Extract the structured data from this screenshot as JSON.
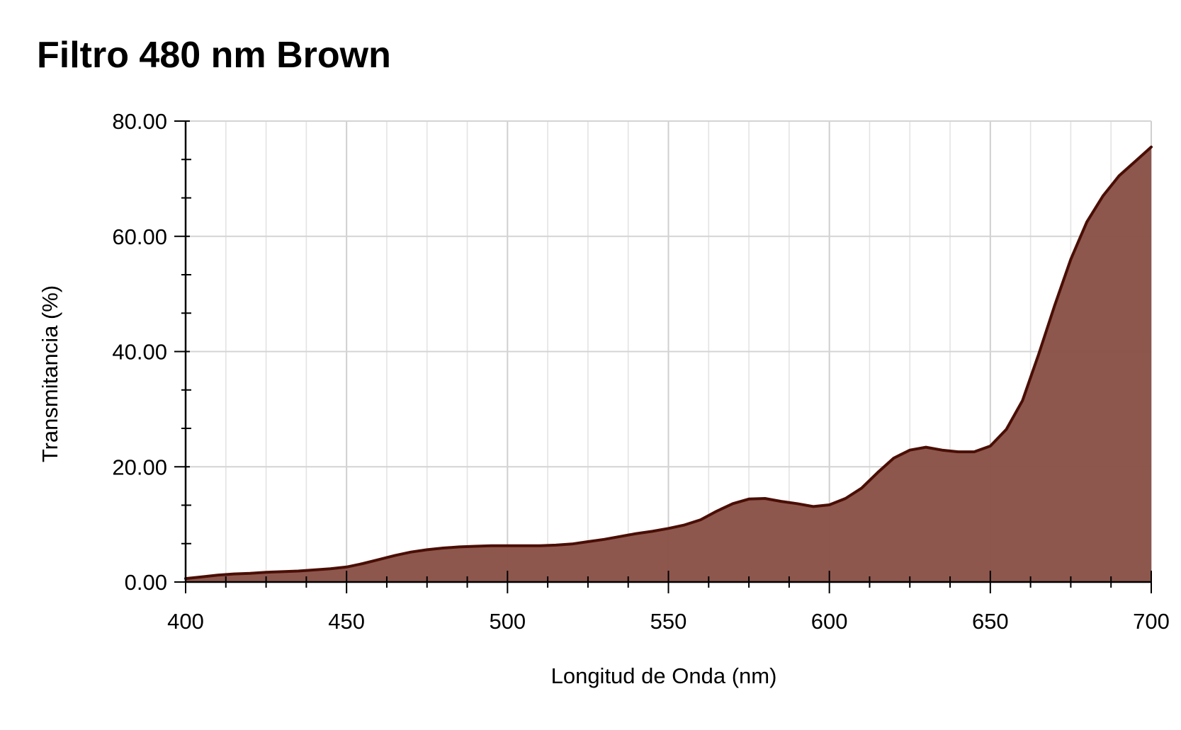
{
  "chart_data": {
    "type": "area",
    "title": "Filtro 480 nm Brown",
    "xlabel": "Longitud de Onda (nm)",
    "ylabel": "Transmitancia (%)",
    "xlim": [
      400,
      700
    ],
    "ylim": [
      0,
      80
    ],
    "x_ticks": [
      "400",
      "450",
      "500",
      "550",
      "600",
      "650",
      "700"
    ],
    "y_ticks": [
      "0.00",
      "20.00",
      "40.00",
      "60.00",
      "80.00"
    ],
    "grid": true,
    "series": [
      {
        "color": "#8B5449",
        "line_color": "#4A0E05",
        "x": [
          400,
          405,
          410,
          415,
          420,
          425,
          430,
          435,
          440,
          445,
          450,
          455,
          460,
          465,
          470,
          475,
          480,
          485,
          490,
          495,
          500,
          505,
          510,
          515,
          520,
          525,
          530,
          535,
          540,
          545,
          550,
          555,
          560,
          565,
          570,
          575,
          580,
          585,
          590,
          595,
          600,
          605,
          610,
          615,
          620,
          625,
          630,
          635,
          640,
          645,
          650,
          655,
          660,
          665,
          670,
          675,
          680,
          685,
          690,
          695,
          700
        ],
        "y": [
          0.6,
          0.9,
          1.2,
          1.4,
          1.5,
          1.7,
          1.8,
          1.9,
          2.1,
          2.3,
          2.6,
          3.2,
          3.9,
          4.6,
          5.2,
          5.6,
          5.9,
          6.1,
          6.2,
          6.3,
          6.3,
          6.3,
          6.3,
          6.4,
          6.6,
          7.0,
          7.4,
          7.9,
          8.4,
          8.8,
          9.3,
          9.9,
          10.8,
          12.3,
          13.6,
          14.4,
          14.5,
          14.0,
          13.6,
          13.1,
          13.4,
          14.5,
          16.3,
          19.0,
          21.5,
          22.9,
          23.4,
          22.9,
          22.6,
          22.6,
          23.6,
          26.5,
          31.5,
          39.5,
          48.0,
          56.0,
          62.5,
          67.0,
          70.5,
          73.0,
          75.5
        ]
      }
    ]
  }
}
